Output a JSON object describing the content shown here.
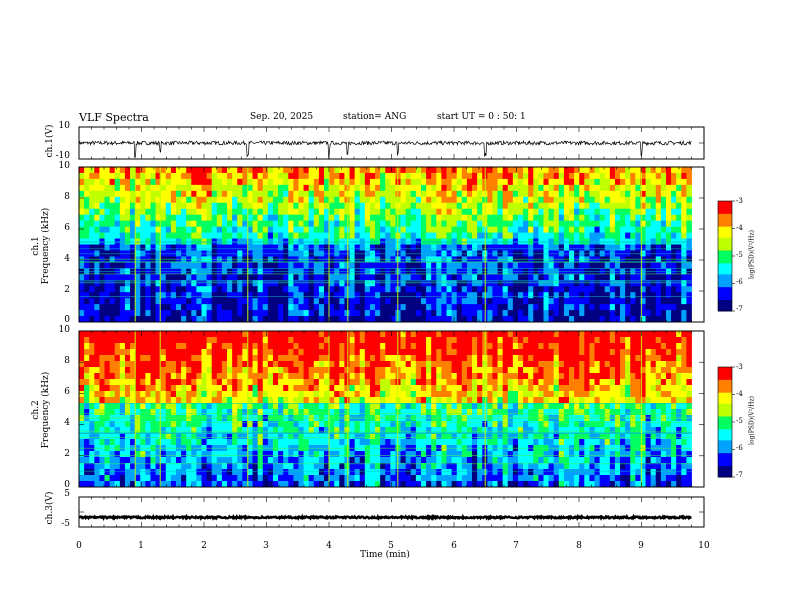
{
  "header": {
    "title": "VLF Spectra",
    "date": "Sep. 20, 2025",
    "station": "station= ANG",
    "start": "start  UT =   0 : 50: 1"
  },
  "colors": {
    "spectrogram_scale": [
      "#000080",
      "#0000ff",
      "#00a0ff",
      "#00ffff",
      "#00ff60",
      "#c0ff00",
      "#ffff00",
      "#ff8000",
      "#ff0000"
    ]
  },
  "chart_data": [
    {
      "type": "line",
      "name": "ch1 waveform",
      "ylabel": "ch.1(V)",
      "ylim": [
        -10,
        10
      ],
      "ytick_labels": [
        "10",
        "-10"
      ],
      "x_range_min": [
        0,
        9.8
      ],
      "series": [
        {
          "name": "ch.1",
          "baseline": 0,
          "noise_amplitude": 1.2,
          "spikes_min": [
            0.9,
            1.3,
            2.7,
            4.0,
            4.3,
            5.1,
            6.5,
            9.0
          ]
        }
      ]
    },
    {
      "type": "heatmap",
      "name": "ch1 spectrogram",
      "ylabel_channel": "ch.1",
      "ylabel": "Frequency (kHz)",
      "ylim": [
        0,
        10
      ],
      "ytick_labels": [
        "10",
        "8",
        "6",
        "4",
        "2",
        "0"
      ],
      "x_range_min": [
        0,
        9.8
      ],
      "colorbar": {
        "label": "log(PSD)(V²/Hz)",
        "range": [
          -7,
          -3
        ],
        "tick_labels": [
          "-3",
          "-4",
          "-5",
          "-6",
          "-7"
        ]
      }
    },
    {
      "type": "heatmap",
      "name": "ch2 spectrogram",
      "ylabel_channel": "ch.2",
      "ylabel": "Frequency (kHz)",
      "ylim": [
        0,
        10
      ],
      "ytick_labels": [
        "10",
        "8",
        "6",
        "4",
        "2",
        "0"
      ],
      "x_range_min": [
        0,
        9.8
      ],
      "colorbar": {
        "label": "log(PSD)(V²/Hz)",
        "range": [
          -7,
          -3
        ],
        "tick_labels": [
          "-3",
          "-4",
          "-5",
          "-6",
          "-7"
        ]
      }
    },
    {
      "type": "line",
      "name": "ch3 waveform",
      "ylabel": "ch.3(V)",
      "ylim": [
        -5,
        5
      ],
      "ytick_labels": [
        "5",
        "-5"
      ],
      "x_range_min": [
        0,
        9.8
      ],
      "series": [
        {
          "name": "ch.3",
          "baseline": -1.8,
          "noise_amplitude": 0.3
        }
      ]
    }
  ],
  "xaxis": {
    "label": "Time  (min)",
    "range": [
      0,
      10
    ],
    "tick_labels": [
      "0",
      "1",
      "2",
      "3",
      "4",
      "5",
      "6",
      "7",
      "8",
      "9",
      "10"
    ]
  }
}
